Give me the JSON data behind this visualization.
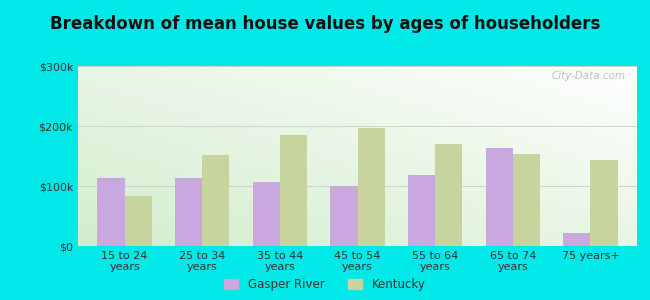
{
  "title": "Breakdown of mean house values by ages of householders",
  "categories": [
    "15 to 24\nyears",
    "25 to 34\nyears",
    "35 to 44\nyears",
    "45 to 54\nyears",
    "55 to 64\nyears",
    "65 to 74\nyears",
    "75 years+"
  ],
  "gasper_river": [
    113000,
    113000,
    107000,
    100000,
    118000,
    163000,
    22000
  ],
  "kentucky": [
    83000,
    152000,
    185000,
    196000,
    170000,
    154000,
    143000
  ],
  "gasper_color": "#c9a8df",
  "kentucky_color": "#c8d49e",
  "background_color": "#00e8e8",
  "ylim": [
    0,
    300000
  ],
  "yticks": [
    0,
    100000,
    200000,
    300000
  ],
  "ytick_labels": [
    "$0",
    "$100k",
    "$200k",
    "$300k"
  ],
  "legend_labels": [
    "Gasper River",
    "Kentucky"
  ],
  "title_fontsize": 12,
  "watermark": "City-Data.com",
  "bar_width": 0.35
}
